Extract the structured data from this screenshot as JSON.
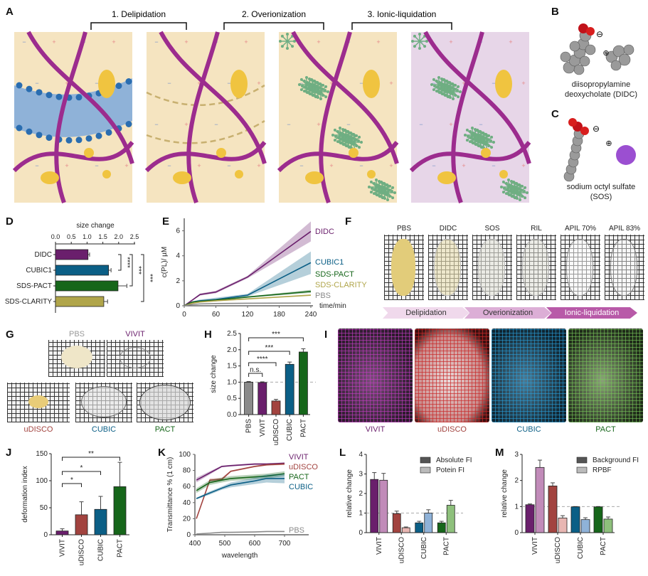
{
  "panel_labels": {
    "A": "A",
    "B": "B",
    "C": "C",
    "D": "D",
    "E": "E",
    "F": "F",
    "G": "G",
    "H": "H",
    "I": "I",
    "J": "J",
    "K": "K",
    "L": "L",
    "M": "M"
  },
  "panel_a": {
    "steps": [
      "1. Delipidation",
      "2. Overionization",
      "3. Ionic-liquidation"
    ]
  },
  "panel_b": {
    "anion": "⊖",
    "cation": "⊕",
    "caption_line1": "diisopropylamine",
    "caption_line2": "deoxycholate (DIDC)"
  },
  "panel_c": {
    "anion": "⊖",
    "cation": "⊕",
    "caption_line1": "sodium octyl sulfate",
    "caption_line2": "(SOS)"
  },
  "panel_f": {
    "labels": [
      "PBS",
      "DIDC",
      "SOS",
      "RIL",
      "APIL 70%",
      "APIL 83%"
    ],
    "stages": [
      "Delipidation",
      "Overionization",
      "Ionic-liquidation"
    ]
  },
  "panel_g": {
    "labels": [
      "PBS",
      "VIVIT",
      "uDISCO",
      "CUBIC",
      "PACT"
    ]
  },
  "panel_i": {
    "labels": [
      "VIVIT",
      "uDISCO",
      "CUBIC",
      "PACT"
    ]
  },
  "colors": {
    "purple": "#6a1f6c",
    "blue": "#0b5f86",
    "green": "#16661a",
    "olive": "#b0a54a",
    "red": "#a2433f",
    "gray": "#8a8a8a",
    "light_purple": "#c18bb9",
    "light_red": "#e8b6b2",
    "light_blue": "#8fb2d8",
    "light_green": "#8ec07c",
    "beige": "#f5e4c0",
    "lavender": "#e7d6e8"
  },
  "chart_data": [
    {
      "id": "D",
      "type": "bar",
      "orientation": "horizontal",
      "xlabel": "size change",
      "xlim": [
        0,
        2.5
      ],
      "xticks": [
        "0.0",
        "0.5",
        "1.0",
        "1.5",
        "2.0",
        "2.5"
      ],
      "categories": [
        "DIDC",
        "CUBIC1",
        "SDS-PACT",
        "SDS-CLARITY"
      ],
      "values": [
        1.03,
        1.68,
        1.98,
        1.53
      ],
      "errors": [
        0.05,
        0.08,
        0.28,
        0.12
      ],
      "bar_colors": [
        "#6a1f6c",
        "#0b5f86",
        "#16661a",
        "#b0a54a"
      ],
      "significance": [
        {
          "a": 0,
          "b": 1,
          "label": "****"
        },
        {
          "a": 0,
          "b": 2,
          "label": "***"
        },
        {
          "a": 0,
          "b": 3,
          "label": "***"
        }
      ]
    },
    {
      "id": "E",
      "type": "line",
      "xlabel": "time/min",
      "ylabel": "c(PL)/ µM",
      "xlim": [
        0,
        240
      ],
      "ylim": [
        0,
        7
      ],
      "xticks": [
        "0",
        "60",
        "120",
        "180",
        "240"
      ],
      "yticks": [
        "0",
        "2",
        "4",
        "6"
      ],
      "x": [
        0,
        15,
        30,
        60,
        120,
        240
      ],
      "series": [
        {
          "name": "DIDC",
          "color": "#6a1f6c",
          "values": [
            0,
            0.45,
            0.9,
            1.1,
            2.3,
            5.95
          ],
          "sd": [
            0,
            0.05,
            0.08,
            0.1,
            0.1,
            0.8
          ]
        },
        {
          "name": "CUBIC1",
          "color": "#0b5f86",
          "values": [
            0,
            0.3,
            0.4,
            0.5,
            0.85,
            3.45
          ],
          "sd": [
            0,
            0.05,
            0.1,
            0.15,
            0.1,
            0.9
          ]
        },
        {
          "name": "SDS-PACT",
          "color": "#16661a",
          "values": [
            0,
            0.3,
            0.35,
            0.45,
            0.7,
            1.15
          ],
          "sd": [
            0,
            0.03,
            0.03,
            0.05,
            0.05,
            0.12
          ]
        },
        {
          "name": "SDS-CLARITY",
          "color": "#b0a54a",
          "values": [
            0,
            0.2,
            0.3,
            0.4,
            0.55,
            0.85
          ],
          "sd": [
            0,
            0.02,
            0.03,
            0.04,
            0.04,
            0.06
          ]
        },
        {
          "name": "PBS",
          "color": "#8a8a8a",
          "values": [
            0,
            0.1,
            0.15,
            0.18,
            0.2,
            0.22
          ],
          "sd": [
            0,
            0.01,
            0.01,
            0.01,
            0.01,
            0.02
          ]
        }
      ]
    },
    {
      "id": "H",
      "type": "bar",
      "ylabel": "size change",
      "ylim": [
        0,
        2.5
      ],
      "yticks": [
        "0.0",
        "0.5",
        "1.0",
        "1.5",
        "2.0",
        "2.5"
      ],
      "reference_line": 1.0,
      "categories": [
        "PBS",
        "VIVIT",
        "uDISCO",
        "CUBIC",
        "PACT"
      ],
      "series": [
        {
          "name": "size change",
          "values": [
            1.0,
            0.99,
            0.42,
            1.55,
            1.93
          ],
          "errors": [
            0.02,
            0.02,
            0.05,
            0.07,
            0.1
          ],
          "colors": [
            "#8a8a8a",
            "#6a1f6c",
            "#a2433f",
            "#0b5f86",
            "#16661a"
          ]
        }
      ],
      "significance": [
        {
          "a": 0,
          "b": 1,
          "label": "n.s."
        },
        {
          "a": 0,
          "b": 2,
          "label": "****"
        },
        {
          "a": 0,
          "b": 3,
          "label": "***"
        },
        {
          "a": 0,
          "b": 4,
          "label": "***"
        }
      ]
    },
    {
      "id": "J",
      "type": "bar",
      "ylabel": "deformation index",
      "ylim": [
        0,
        150
      ],
      "yticks": [
        "0",
        "50",
        "100",
        "150"
      ],
      "categories": [
        "VIVIT",
        "uDISCO",
        "CUBIC",
        "PACT"
      ],
      "series": [
        {
          "name": "deformation index",
          "values": [
            7,
            37,
            47,
            89
          ],
          "errors": [
            4,
            24,
            24,
            45
          ],
          "colors": [
            "#6a1f6c",
            "#a2433f",
            "#0b5f86",
            "#16661a"
          ]
        }
      ],
      "significance": [
        {
          "a": 0,
          "b": 1,
          "label": "*"
        },
        {
          "a": 0,
          "b": 2,
          "label": "*"
        },
        {
          "a": 0,
          "b": 3,
          "label": "**"
        }
      ]
    },
    {
      "id": "K",
      "type": "line",
      "xlabel": "wavelength",
      "ylabel": "Transmittance % (1 cm)",
      "xlim": [
        400,
        700
      ],
      "ylim": [
        0,
        100
      ],
      "xticks": [
        "400",
        "500",
        "600",
        "700"
      ],
      "yticks": [
        "0",
        "20",
        "40",
        "60",
        "80",
        "100"
      ],
      "x": [
        405,
        450,
        490,
        520,
        600,
        640,
        700
      ],
      "series": [
        {
          "name": "VIVIT",
          "color": "#6a1f6c",
          "values": [
            68,
            77,
            85,
            86,
            88,
            88,
            89
          ],
          "sd": [
            3,
            2,
            1,
            1,
            1,
            1,
            1
          ]
        },
        {
          "name": "uDISCO",
          "color": "#a2433f",
          "values": [
            20,
            68,
            69,
            79,
            85,
            87,
            88
          ],
          "sd": [
            1,
            2,
            2,
            1,
            1,
            1,
            1
          ]
        },
        {
          "name": "PACT",
          "color": "#16661a",
          "values": [
            55,
            65,
            68,
            70,
            72,
            73,
            76
          ],
          "sd": [
            3,
            3,
            3,
            3,
            3,
            3,
            3
          ]
        },
        {
          "name": "CUBIC",
          "color": "#0b5f86",
          "values": [
            45,
            52,
            58,
            62,
            67,
            70,
            70
          ],
          "sd": [
            1,
            2,
            2,
            3,
            4,
            5,
            6
          ]
        },
        {
          "name": "PBS",
          "color": "#8a8a8a",
          "values": [
            1,
            2,
            3,
            3,
            3.5,
            4,
            4
          ],
          "sd": [
            0.5,
            0.5,
            0.5,
            0.5,
            0.5,
            0.5,
            0.5
          ]
        }
      ]
    },
    {
      "id": "L",
      "type": "bar",
      "ylabel": "relative change",
      "ylim": [
        0,
        4
      ],
      "yticks": [
        "0",
        "1",
        "2",
        "3",
        "4"
      ],
      "reference_line": 1,
      "categories": [
        "VIVIT",
        "uDISCO",
        "CUBIC",
        "PACT"
      ],
      "series": [
        {
          "name": "Absolute FI",
          "legend_color": "#555555",
          "values": [
            2.72,
            0.97,
            0.5,
            0.5
          ],
          "errors": [
            0.35,
            0.13,
            0.08,
            0.08
          ],
          "colors": [
            "#6a1f6c",
            "#a2433f",
            "#0b5f86",
            "#16661a"
          ]
        },
        {
          "name": "Potein FI",
          "legend_color": "#bbbbbb",
          "values": [
            2.68,
            0.25,
            1.0,
            1.4
          ],
          "errors": [
            0.35,
            0.04,
            0.17,
            0.25
          ],
          "colors": [
            "#c18bb9",
            "#e8b6b2",
            "#8fb2d8",
            "#8ec07c"
          ]
        }
      ]
    },
    {
      "id": "M",
      "type": "bar",
      "ylabel": "relative change",
      "ylim": [
        0,
        3
      ],
      "yticks": [
        "0",
        "1",
        "2",
        "3"
      ],
      "reference_line": 1,
      "categories": [
        "VIVIT",
        "uDISCO",
        "CUBIC",
        "PACT"
      ],
      "series": [
        {
          "name": "Background FI",
          "legend_color": "#555555",
          "values": [
            1.07,
            1.79,
            0.99,
            0.99
          ],
          "errors": [
            0.03,
            0.12,
            0.01,
            0.01
          ],
          "colors": [
            "#6a1f6c",
            "#a2433f",
            "#0b5f86",
            "#16661a"
          ]
        },
        {
          "name": "RPBF",
          "legend_color": "#bbbbbb",
          "values": [
            2.5,
            0.56,
            0.5,
            0.52
          ],
          "errors": [
            0.28,
            0.09,
            0.07,
            0.08
          ],
          "colors": [
            "#c18bb9",
            "#e8b6b2",
            "#8fb2d8",
            "#8ec07c"
          ]
        }
      ]
    }
  ]
}
